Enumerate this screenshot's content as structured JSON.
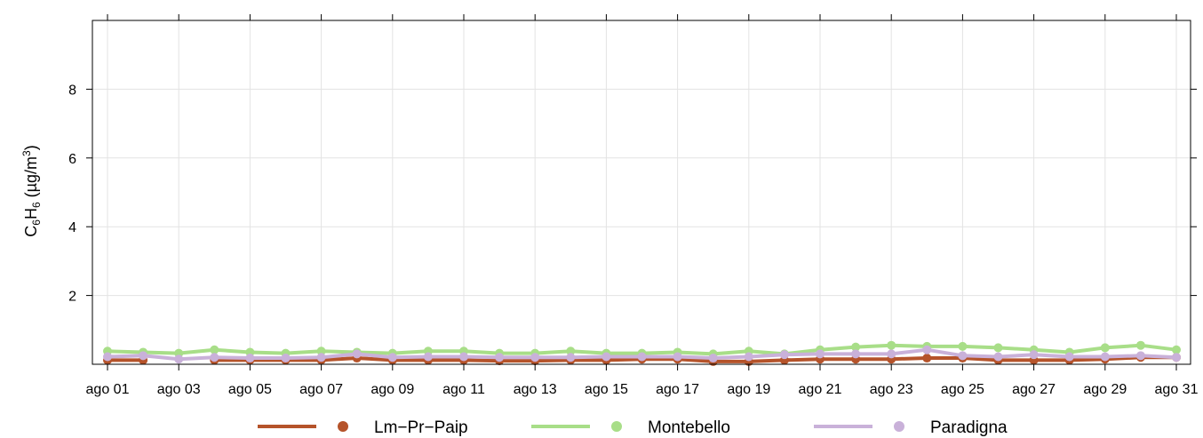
{
  "chart_data": {
    "type": "line",
    "ylabel_main": "C",
    "ylabel_sub1": "6",
    "ylabel_mid": "H",
    "ylabel_sub2": "6",
    "ylabel_unit": " (µg/m",
    "ylabel_sup": "3",
    "ylabel_close": ")",
    "ylim": [
      0,
      10
    ],
    "yticks": [
      2,
      4,
      6,
      8
    ],
    "xlim": [
      1,
      31
    ],
    "xticks": [
      {
        "day": 1,
        "label": "ago 01"
      },
      {
        "day": 3,
        "label": "ago 03"
      },
      {
        "day": 5,
        "label": "ago 05"
      },
      {
        "day": 7,
        "label": "ago 07"
      },
      {
        "day": 9,
        "label": "ago 09"
      },
      {
        "day": 11,
        "label": "ago 11"
      },
      {
        "day": 13,
        "label": "ago 13"
      },
      {
        "day": 15,
        "label": "ago 15"
      },
      {
        "day": 17,
        "label": "ago 17"
      },
      {
        "day": 19,
        "label": "ago 19"
      },
      {
        "day": 21,
        "label": "ago 21"
      },
      {
        "day": 23,
        "label": "ago 23"
      },
      {
        "day": 25,
        "label": "ago 25"
      },
      {
        "day": 27,
        "label": "ago 27"
      },
      {
        "day": 29,
        "label": "ago 29"
      },
      {
        "day": 31,
        "label": "ago 31"
      }
    ],
    "x": [
      1,
      2,
      3,
      4,
      5,
      6,
      7,
      8,
      9,
      10,
      11,
      12,
      13,
      14,
      15,
      16,
      17,
      18,
      19,
      20,
      21,
      22,
      23,
      24,
      25,
      26,
      27,
      28,
      29,
      30,
      31
    ],
    "grid": true,
    "legend_position": "bottom",
    "series": [
      {
        "name": "Lm−Pr−Paip",
        "color": "#b5532a",
        "values": [
          0.12,
          0.12,
          null,
          0.12,
          0.12,
          0.12,
          0.12,
          0.18,
          0.12,
          0.12,
          0.12,
          0.1,
          0.1,
          0.12,
          0.12,
          0.15,
          0.15,
          0.08,
          0.08,
          0.12,
          0.15,
          0.15,
          0.15,
          0.18,
          0.18,
          0.12,
          0.12,
          0.12,
          0.15,
          0.2,
          0.2
        ]
      },
      {
        "name": "Montebello",
        "color": "#a8de88",
        "values": [
          0.38,
          0.35,
          0.32,
          0.42,
          0.35,
          0.32,
          0.38,
          0.35,
          0.32,
          0.38,
          0.38,
          0.32,
          0.32,
          0.38,
          0.32,
          0.32,
          0.35,
          0.3,
          0.38,
          0.3,
          0.42,
          0.5,
          0.55,
          0.52,
          0.52,
          0.48,
          0.42,
          0.35,
          0.48,
          0.55,
          0.42
        ]
      },
      {
        "name": "Paradigna",
        "color": "#c9b1d9",
        "values": [
          0.22,
          0.25,
          0.15,
          0.2,
          0.18,
          0.18,
          0.2,
          0.3,
          0.2,
          0.22,
          0.22,
          0.2,
          0.2,
          0.2,
          0.22,
          0.22,
          0.22,
          0.18,
          0.22,
          0.28,
          0.3,
          0.3,
          0.3,
          0.42,
          0.25,
          0.22,
          0.28,
          0.22,
          0.22,
          0.25,
          0.2
        ]
      }
    ]
  }
}
